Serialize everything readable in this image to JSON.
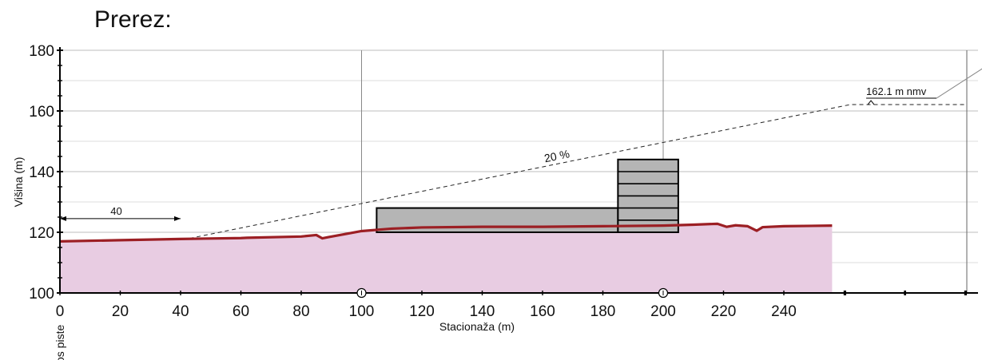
{
  "page": {
    "title": "Prerez:"
  },
  "colors": {
    "fill": "#e8cce2",
    "terrain_line": "#9c1f24",
    "building": "#b5b5b5",
    "grid": "#bdbdbd"
  },
  "chart_data": {
    "type": "area",
    "xlabel": "Stacionaža (m)",
    "ylabel": "Višina (m)",
    "x_ticks": [
      0,
      20,
      40,
      60,
      80,
      100,
      120,
      140,
      160,
      180,
      200,
      220,
      240
    ],
    "y_ticks": [
      100,
      120,
      140,
      160,
      180
    ],
    "xlim": [
      0,
      300
    ],
    "ylim": [
      100,
      180
    ],
    "origin_label": "os piste",
    "terrain": {
      "x": [
        0,
        20,
        40,
        60,
        62,
        80,
        85,
        87,
        89,
        95,
        100,
        110,
        120,
        140,
        160,
        180,
        200,
        210,
        218,
        221,
        224,
        228,
        231,
        233,
        240,
        256
      ],
      "y": [
        117,
        117.4,
        117.8,
        118.1,
        118.2,
        118.6,
        119.1,
        118,
        118.4,
        119.5,
        120.4,
        121.2,
        121.6,
        121.8,
        121.8,
        122,
        122.2,
        122.5,
        122.8,
        121.8,
        122.3,
        122,
        120.5,
        121.7,
        122,
        122.2
      ]
    },
    "slope_line": {
      "x": [
        43,
        262,
        300
      ],
      "y": [
        118,
        162.1,
        162.1
      ],
      "label": "20 %"
    },
    "elevation_label": "162.1 m nmv",
    "distance_label": "40",
    "distance_range": [
      0,
      40
    ],
    "building_low": {
      "x": [
        105,
        185
      ],
      "y": [
        120,
        128
      ]
    },
    "building_tall": {
      "x": [
        185,
        205
      ],
      "y": [
        120,
        144
      ],
      "floors": 6
    },
    "axis_markers": [
      100,
      200
    ]
  }
}
